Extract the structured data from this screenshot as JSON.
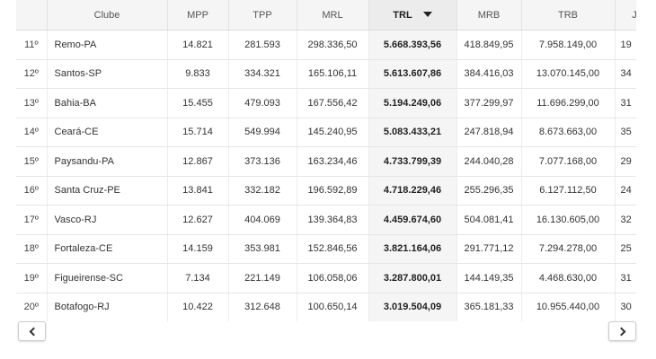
{
  "columns": [
    "",
    "Clube",
    "MPP",
    "TPP",
    "MRL",
    "TRL",
    "MRB",
    "TRB",
    "J"
  ],
  "sorted_column": "TRL",
  "rows": [
    [
      "11º",
      "Remo-PA",
      "14.821",
      "281.593",
      "298.336,50",
      "5.668.393,56",
      "418.849,95",
      "7.958.149,00",
      "19"
    ],
    [
      "12º",
      "Santos-SP",
      "9.833",
      "334.321",
      "165.106,11",
      "5.613.607,86",
      "384.416,03",
      "13.070.145,00",
      "34"
    ],
    [
      "13º",
      "Bahia-BA",
      "15.455",
      "479.093",
      "167.556,42",
      "5.194.249,06",
      "377.299,97",
      "11.696.299,00",
      "31"
    ],
    [
      "14º",
      "Ceará-CE",
      "15.714",
      "549.994",
      "145.240,95",
      "5.083.433,21",
      "247.818,94",
      "8.673.663,00",
      "35"
    ],
    [
      "15º",
      "Paysandu-PA",
      "12.867",
      "373.136",
      "163.234,46",
      "4.733.799,39",
      "244.040,28",
      "7.077.168,00",
      "29"
    ],
    [
      "16º",
      "Santa Cruz-PE",
      "13.841",
      "332.182",
      "196.592,89",
      "4.718.229,46",
      "255.296,35",
      "6.127.112,50",
      "24"
    ],
    [
      "17º",
      "Vasco-RJ",
      "12.627",
      "404.069",
      "139.364,83",
      "4.459.674,60",
      "504.081,41",
      "16.130.605,00",
      "32"
    ],
    [
      "18º",
      "Fortaleza-CE",
      "14.159",
      "353.981",
      "152.846,56",
      "3.821.164,06",
      "291.771,12",
      "7.294.278,00",
      "25"
    ],
    [
      "19º",
      "Figueirense-SC",
      "7.134",
      "221.149",
      "106.058,06",
      "3.287.800,01",
      "144.149,35",
      "4.468.630,00",
      "31"
    ],
    [
      "20º",
      "Botafogo-RJ",
      "10.422",
      "312.648",
      "100.650,14",
      "3.019.504,09",
      "365.181,33",
      "10.955.440,00",
      "30"
    ]
  ],
  "icons": {
    "sort": "sort-descending-icon",
    "prev": "chevron-left-icon",
    "next": "chevron-right-icon"
  }
}
